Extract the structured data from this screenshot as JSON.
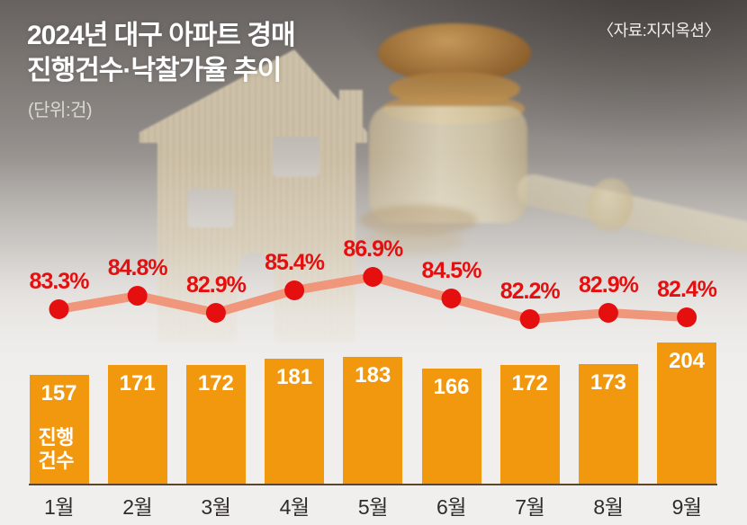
{
  "header": {
    "title_line1": "2024년 대구 아파트 경매",
    "title_line2": "진행건수·낙찰가율 추이",
    "unit": "(단위:건)",
    "source": "〈자료:지지옥션〉"
  },
  "chart_data": {
    "type": "bar",
    "title": "2024년 대구 아파트 경매 진행건수·낙찰가율 추이",
    "unit_note": "(단위:건)",
    "source": "〈자료:지지옥션〉",
    "categories": [
      "1월",
      "2월",
      "3월",
      "4월",
      "5월",
      "6월",
      "7월",
      "8월",
      "9월"
    ],
    "series": [
      {
        "name": "진행건수",
        "type": "bar",
        "values": [
          157,
          171,
          172,
          181,
          183,
          166,
          172,
          173,
          204
        ]
      },
      {
        "name": "낙찰가율",
        "type": "line",
        "unit": "%",
        "values": [
          83.3,
          84.8,
          82.9,
          85.4,
          86.9,
          84.5,
          82.2,
          82.9,
          82.4
        ]
      }
    ],
    "bar_series_label": "진행\n건수",
    "legend_position": "on-first-bar",
    "grid": false,
    "colors": {
      "bar": "#F2980F",
      "bar_value_text": "#FFFFFF",
      "line": "#F0967A",
      "dot": "#E50F0F",
      "pct_label": "#E50F0F",
      "baseline": "#5D4526",
      "month_label": "#2F2D2B"
    }
  }
}
